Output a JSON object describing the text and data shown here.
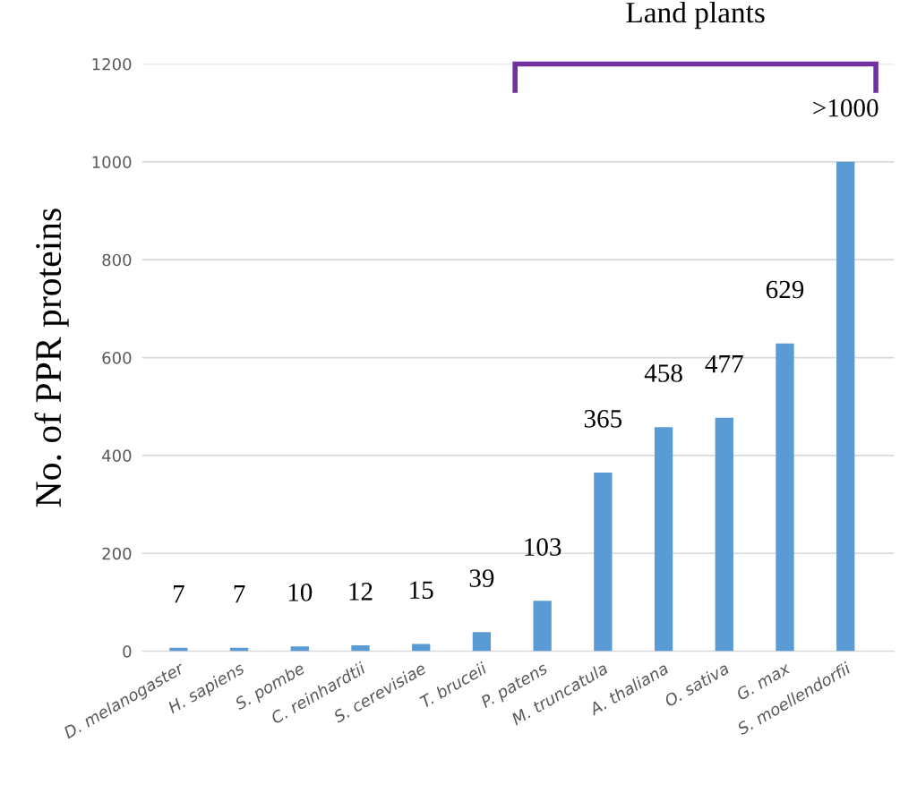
{
  "chart_data": {
    "type": "bar",
    "ylabel": "No. of PPR proteins",
    "categories": [
      "D. melanogaster",
      "H. sapiens",
      "S. pombe",
      "C. reinhardtii",
      "S. cerevisiae",
      "T. bruceii",
      "P. patens",
      "M. truncatula",
      "A. thaliana",
      "O. sativa",
      "G. max",
      "S. moellendorfii"
    ],
    "values": [
      7,
      7,
      10,
      12,
      15,
      39,
      103,
      365,
      458,
      477,
      629,
      1000
    ],
    "value_labels": [
      "7",
      "7",
      "10",
      "12",
      "15",
      "39",
      "103",
      "365",
      "458",
      "477",
      "629",
      ">1000"
    ],
    "color": "#5b9bd5",
    "ylim": [
      0,
      1200
    ],
    "yticks": [
      0,
      200,
      400,
      600,
      800,
      1000,
      1200
    ],
    "grid": "y",
    "legend": false,
    "annotations": [
      "Land plants"
    ]
  }
}
